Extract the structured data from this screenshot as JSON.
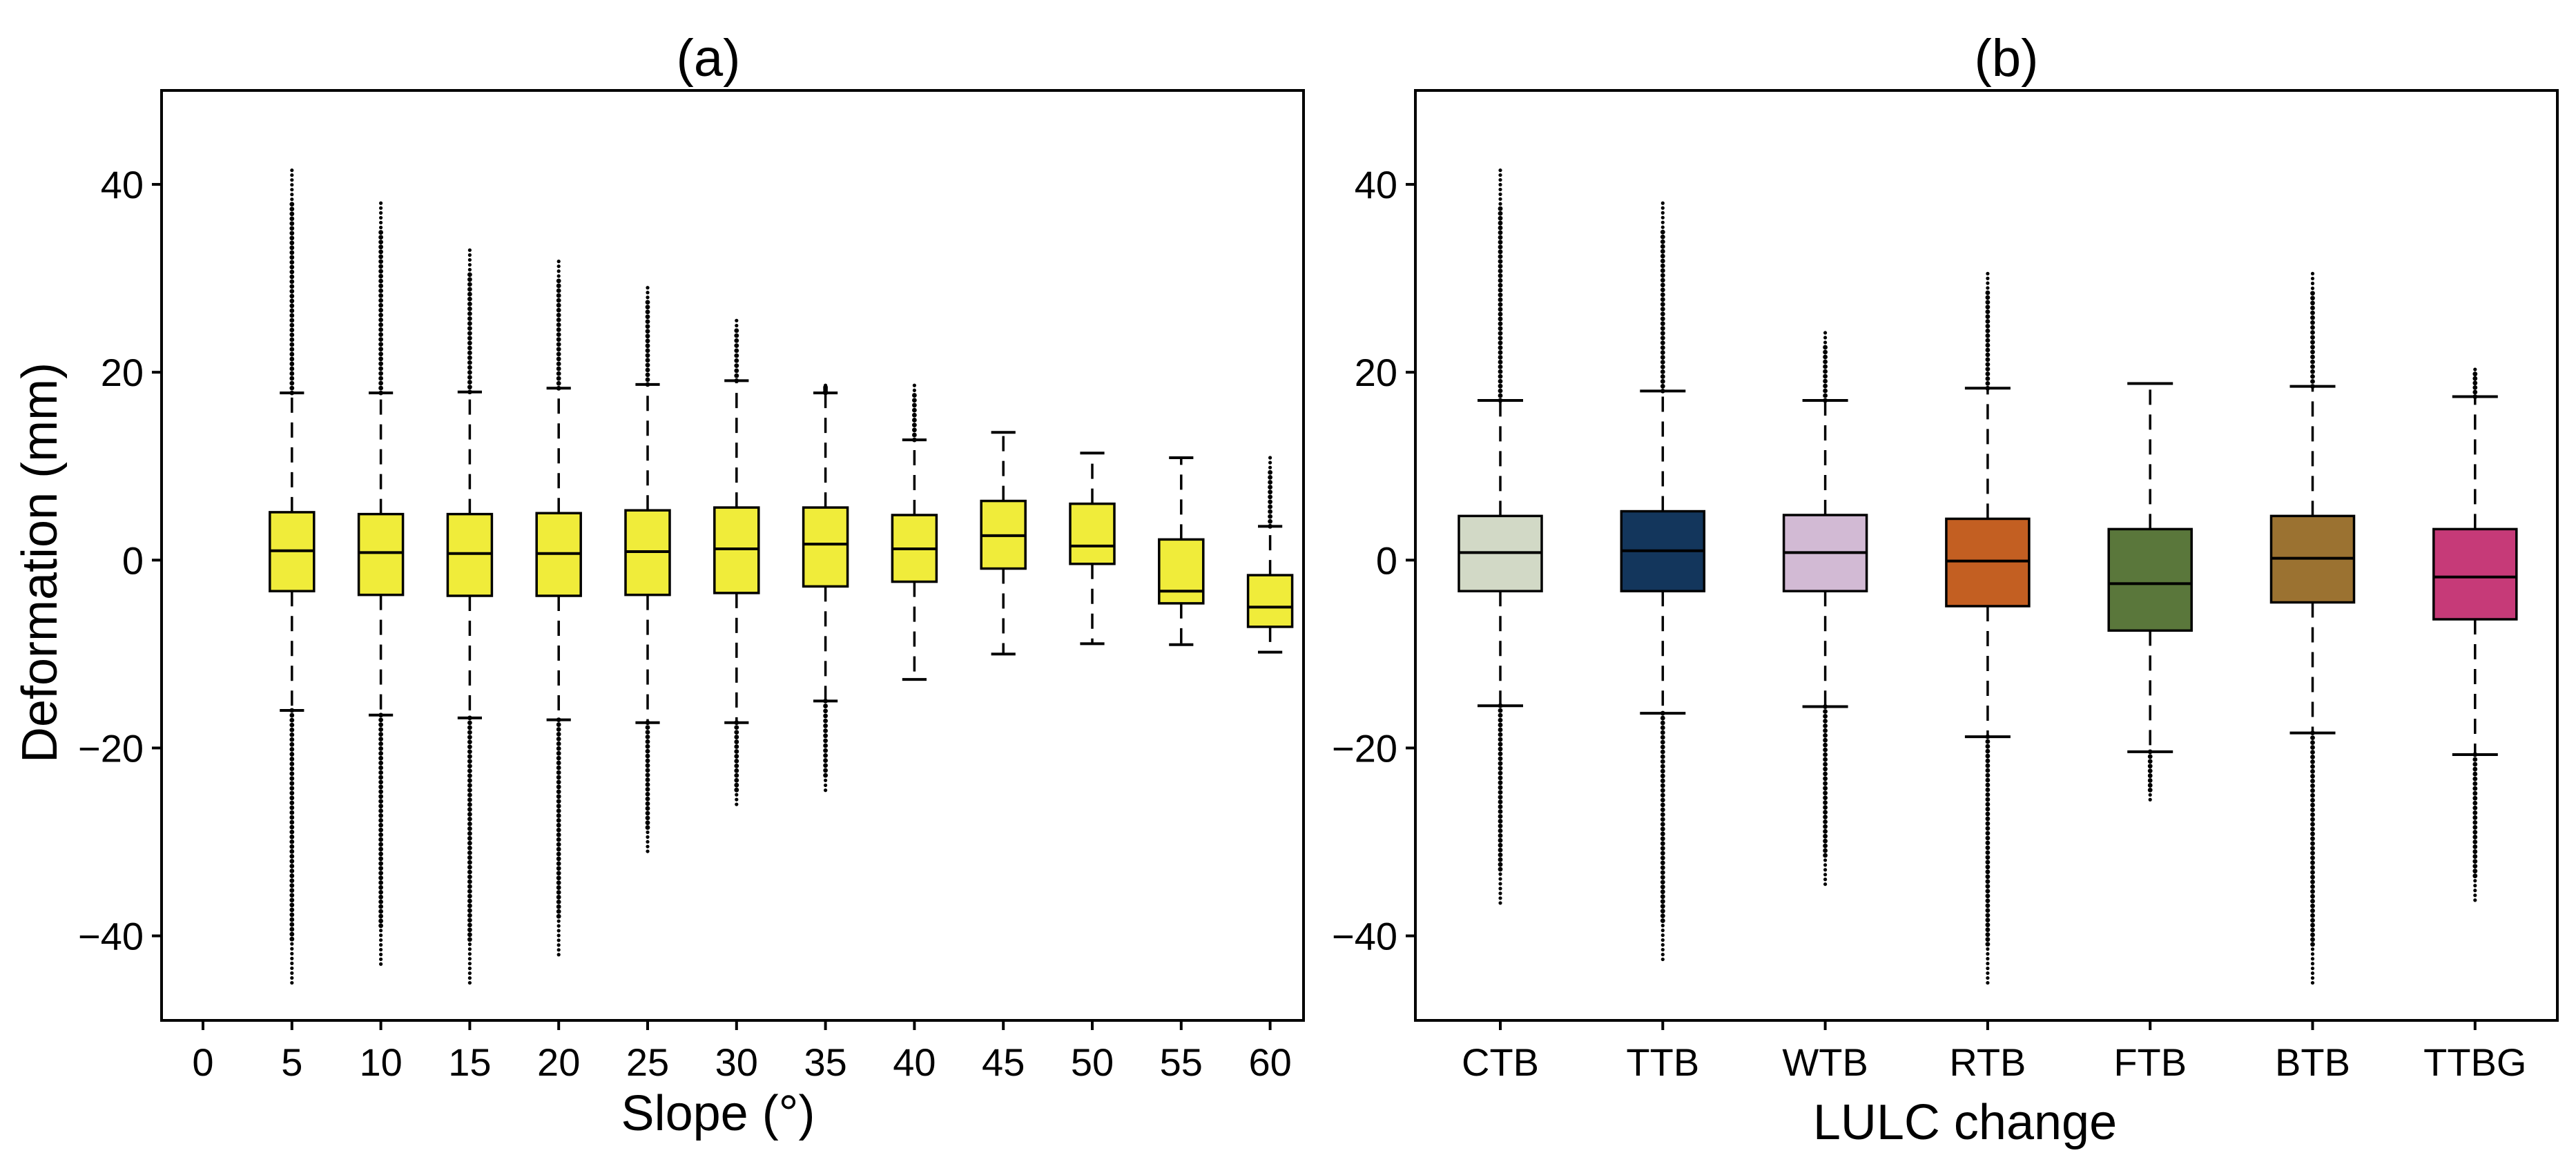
{
  "chart_data": [
    {
      "type": "box",
      "title": "(a)",
      "xlabel": "Slope (°)",
      "ylabel": "Deformation (mm)",
      "ylim": [
        -49,
        50
      ],
      "yticks": [
        -40,
        -20,
        0,
        20,
        40
      ],
      "categories": [
        "0",
        "5",
        "10",
        "15",
        "20",
        "25",
        "30",
        "35",
        "40",
        "45",
        "50",
        "55",
        "60"
      ],
      "box_color": "#f0ec3a",
      "boxes": [
        {
          "category": "5",
          "q1": -3.3,
          "median": 1.0,
          "q3": 5.1,
          "whisker_low": -16.0,
          "whisker_high": 17.8,
          "flier_low": -45.0,
          "flier_high": 41.5
        },
        {
          "category": "10",
          "q1": -3.7,
          "median": 0.8,
          "q3": 4.9,
          "whisker_low": -16.5,
          "whisker_high": 17.8,
          "flier_low": -43.0,
          "flier_high": 38.0
        },
        {
          "category": "15",
          "q1": -3.8,
          "median": 0.7,
          "q3": 4.9,
          "whisker_low": -16.8,
          "whisker_high": 17.9,
          "flier_low": -45.0,
          "flier_high": 33.0
        },
        {
          "category": "20",
          "q1": -3.8,
          "median": 0.7,
          "q3": 5.0,
          "whisker_low": -17.0,
          "whisker_high": 18.3,
          "flier_low": -42.0,
          "flier_high": 31.8
        },
        {
          "category": "25",
          "q1": -3.7,
          "median": 0.9,
          "q3": 5.3,
          "whisker_low": -17.3,
          "whisker_high": 18.7,
          "flier_low": -31.0,
          "flier_high": 29.0
        },
        {
          "category": "30",
          "q1": -3.5,
          "median": 1.2,
          "q3": 5.6,
          "whisker_low": -17.3,
          "whisker_high": 19.1,
          "flier_low": -26.0,
          "flier_high": 25.5
        },
        {
          "category": "35",
          "q1": -2.8,
          "median": 1.7,
          "q3": 5.6,
          "whisker_low": -15.0,
          "whisker_high": 17.8,
          "flier_low": -24.5,
          "flier_high": 18.6
        },
        {
          "category": "40",
          "q1": -2.3,
          "median": 1.2,
          "q3": 4.8,
          "whisker_low": -12.7,
          "whisker_high": 12.8,
          "flier_low": null,
          "flier_high": 18.6
        },
        {
          "category": "45",
          "q1": -0.9,
          "median": 2.6,
          "q3": 6.3,
          "whisker_low": -10.0,
          "whisker_high": 13.6,
          "flier_low": null,
          "flier_high": null
        },
        {
          "category": "50",
          "q1": -0.4,
          "median": 1.5,
          "q3": 6.0,
          "whisker_low": -8.9,
          "whisker_high": 11.4,
          "flier_low": null,
          "flier_high": null
        },
        {
          "category": "55",
          "q1": -4.6,
          "median": -3.3,
          "q3": 2.2,
          "whisker_low": -9.0,
          "whisker_high": 10.9,
          "flier_low": null,
          "flier_high": null
        },
        {
          "category": "60",
          "q1": -7.1,
          "median": -5.0,
          "q3": -1.6,
          "whisker_low": -9.8,
          "whisker_high": 3.6,
          "flier_low": null,
          "flier_high": 10.9
        }
      ]
    },
    {
      "type": "box",
      "title": "(b)",
      "xlabel": "LULC change",
      "ylabel": "",
      "ylim": [
        -49,
        50
      ],
      "yticks": [
        -40,
        -20,
        0,
        20,
        40
      ],
      "categories": [
        "CTB",
        "TTB",
        "WTB",
        "RTB",
        "FTB",
        "BTB",
        "TTBG"
      ],
      "boxes": [
        {
          "category": "CTB",
          "color": "#d2d9c6",
          "q1": -3.3,
          "median": 0.8,
          "q3": 4.7,
          "whisker_low": -15.5,
          "whisker_high": 17.0,
          "flier_low": -36.5,
          "flier_high": 41.5
        },
        {
          "category": "TTB",
          "color": "#13365c",
          "q1": -3.3,
          "median": 1.0,
          "q3": 5.2,
          "whisker_low": -16.3,
          "whisker_high": 18.0,
          "flier_low": -42.5,
          "flier_high": 38.0
        },
        {
          "category": "WTB",
          "color": "#d2bad4",
          "q1": -3.3,
          "median": 0.8,
          "q3": 4.8,
          "whisker_low": -15.6,
          "whisker_high": 17.0,
          "flier_low": -34.5,
          "flier_high": 24.2
        },
        {
          "category": "RTB",
          "color": "#c35f22",
          "q1": -4.9,
          "median": -0.1,
          "q3": 4.4,
          "whisker_low": -18.8,
          "whisker_high": 18.3,
          "flier_low": -45.0,
          "flier_high": 30.5
        },
        {
          "category": "FTB",
          "color": "#5a773b",
          "q1": -7.5,
          "median": -2.5,
          "q3": 3.3,
          "whisker_low": -20.4,
          "whisker_high": 18.8,
          "flier_low": -25.5,
          "flier_high": null
        },
        {
          "category": "BTB",
          "color": "#9b7231",
          "q1": -4.5,
          "median": 0.2,
          "q3": 4.7,
          "whisker_low": -18.4,
          "whisker_high": 18.5,
          "flier_low": -45.0,
          "flier_high": 30.5
        },
        {
          "category": "TTBG",
          "color": "#c63a78",
          "q1": -6.3,
          "median": -1.8,
          "q3": 3.3,
          "whisker_low": -20.7,
          "whisker_high": 17.4,
          "flier_low": -36.2,
          "flier_high": 20.3
        }
      ]
    }
  ]
}
